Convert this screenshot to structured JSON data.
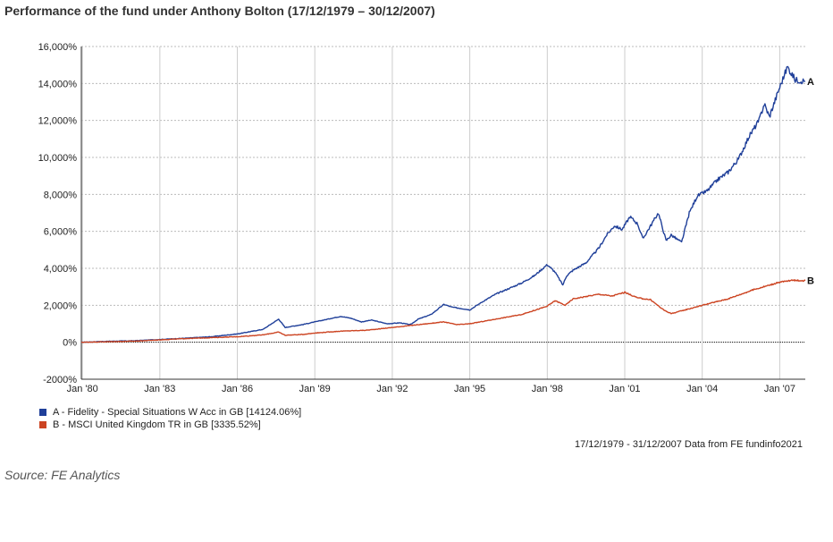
{
  "header": {
    "title": "Performance of the fund under Anthony Bolton (17/12/1979 – 30/12/2007)"
  },
  "chart_data": {
    "type": "line",
    "title": "Performance of the fund under Anthony Bolton (17/12/1979 – 30/12/2007)",
    "xlabel": "",
    "ylabel": "",
    "ylim": [
      -2000,
      16000
    ],
    "xlim": [
      1979.96,
      2007.99
    ],
    "y_ticks": [
      -2000,
      0,
      2000,
      4000,
      6000,
      8000,
      10000,
      12000,
      14000,
      16000
    ],
    "y_tick_labels": [
      "-2000%",
      "0%",
      "2,000%",
      "4,000%",
      "6,000%",
      "8,000%",
      "10,000%",
      "12,000%",
      "14,000%",
      "16,000%"
    ],
    "x_ticks": [
      1980,
      1983,
      1986,
      1989,
      1992,
      1995,
      1998,
      2001,
      2004,
      2007
    ],
    "x_tick_labels": [
      "Jan '80",
      "Jan '83",
      "Jan '86",
      "Jan '89",
      "Jan '92",
      "Jan '95",
      "Jan '98",
      "Jan '01",
      "Jan '04",
      "Jan '07"
    ],
    "grid": true,
    "series": [
      {
        "name": "A - Fidelity - Special Situations W Acc in GB [14124.06%]",
        "end_label": "A",
        "color": "#1f3f99",
        "x": [
          1979.96,
          1981,
          1982,
          1983,
          1984,
          1985,
          1986,
          1987,
          1987.6,
          1987.85,
          1988.5,
          1989,
          1989.5,
          1990,
          1990.4,
          1990.8,
          1991.2,
          1991.8,
          1992.3,
          1992.7,
          1993,
          1993.5,
          1994,
          1994.3,
          1994.8,
          1995,
          1995.5,
          1996,
          1996.5,
          1997,
          1997.5,
          1998,
          1998.3,
          1998.6,
          1998.75,
          1999,
          1999.5,
          2000,
          2000.3,
          2000.6,
          2000.9,
          2001.2,
          2001.5,
          2001.7,
          2002,
          2002.3,
          2002.6,
          2002.8,
          2003.2,
          2003.5,
          2003.8,
          2004.2,
          2004.6,
          2005,
          2005.4,
          2005.8,
          2006.2,
          2006.4,
          2006.6,
          2007,
          2007.3,
          2007.6,
          2007.99
        ],
        "values": [
          0,
          50,
          80,
          150,
          220,
          300,
          450,
          700,
          1250,
          800,
          950,
          1100,
          1250,
          1400,
          1300,
          1100,
          1200,
          1000,
          1050,
          950,
          1250,
          1500,
          2050,
          1900,
          1800,
          1750,
          2200,
          2600,
          2900,
          3200,
          3600,
          4200,
          3800,
          3100,
          3600,
          3900,
          4300,
          5100,
          5800,
          6300,
          6100,
          6800,
          6400,
          5600,
          6300,
          7000,
          5500,
          5800,
          5400,
          7000,
          7900,
          8200,
          8800,
          9200,
          9900,
          11100,
          12000,
          12900,
          12200,
          13800,
          14900,
          14200,
          14124
        ]
      },
      {
        "name": "B - MSCI United Kingdom TR in GB [3335.52%]",
        "end_label": "B",
        "color": "#cc4422",
        "x": [
          1979.96,
          1981,
          1982,
          1983,
          1984,
          1985,
          1986,
          1987,
          1987.6,
          1987.85,
          1988.5,
          1989,
          1990,
          1991,
          1992,
          1993,
          1994,
          1994.5,
          1995,
          1996,
          1997,
          1998,
          1998.3,
          1998.7,
          1999,
          2000,
          2000.5,
          2001,
          2001.5,
          2002,
          2002.5,
          2002.8,
          2003.2,
          2004,
          2005,
          2006,
          2006.5,
          2007,
          2007.5,
          2007.99
        ],
        "values": [
          0,
          30,
          60,
          130,
          200,
          250,
          300,
          400,
          550,
          380,
          420,
          500,
          600,
          650,
          800,
          950,
          1100,
          950,
          1000,
          1250,
          1500,
          1950,
          2250,
          2000,
          2350,
          2600,
          2500,
          2700,
          2400,
          2300,
          1750,
          1550,
          1700,
          2000,
          2350,
          2850,
          3050,
          3250,
          3350,
          3336
        ]
      }
    ]
  },
  "legend": {
    "items": [
      {
        "label": "A - Fidelity - Special Situations W Acc in GB [14124.06%]",
        "color": "#1f3f99"
      },
      {
        "label": "B - MSCI United Kingdom TR in GB [3335.52%]",
        "color": "#cc4422"
      }
    ]
  },
  "footer": {
    "note": "17/12/1979 - 31/12/2007 Data from FE fundinfo2021"
  },
  "source": {
    "text": "Source: FE Analytics"
  }
}
